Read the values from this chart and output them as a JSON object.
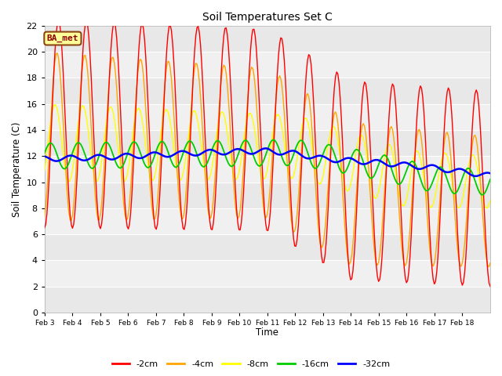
{
  "title": "Soil Temperatures Set C",
  "xlabel": "Time",
  "ylabel": "Soil Temperature (C)",
  "ylim": [
    0,
    22
  ],
  "yticks": [
    0,
    2,
    4,
    6,
    8,
    10,
    12,
    14,
    16,
    18,
    20,
    22
  ],
  "x_labels": [
    "Feb 3",
    "Feb 4",
    "Feb 5",
    "Feb 6",
    "Feb 7",
    "Feb 8",
    "Feb 9",
    "Feb 10",
    "Feb 11",
    "Feb 12",
    "Feb 13",
    "Feb 14",
    "Feb 15",
    "Feb 16",
    "Feb 17",
    "Feb 18"
  ],
  "n_days": 16,
  "colors": {
    "-2cm": "#ff0000",
    "-4cm": "#ffa500",
    "-8cm": "#ffff00",
    "-16cm": "#00cc00",
    "-32cm": "#0000ff"
  },
  "background_color": "#ffffff",
  "plot_bg_color": "#f0f0f0",
  "annotation_text": "BA_met",
  "annotation_bg": "#ffff99",
  "annotation_border": "#8B4513",
  "annotation_text_color": "#8B0000",
  "band_light": "#e8e8e8",
  "band_dark": "#d8d8d8"
}
